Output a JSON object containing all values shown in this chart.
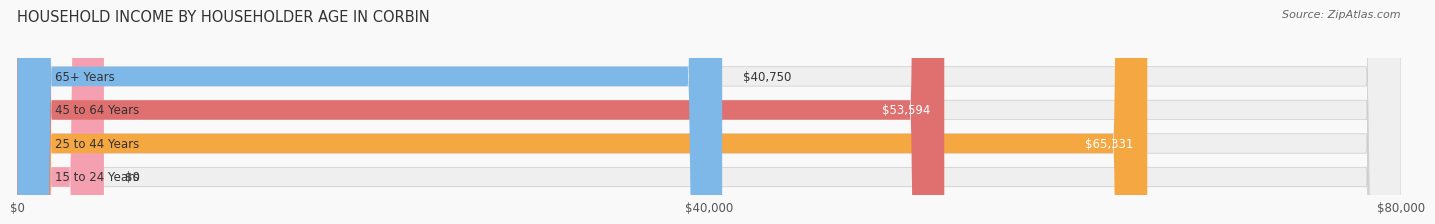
{
  "title": "HOUSEHOLD INCOME BY HOUSEHOLDER AGE IN CORBIN",
  "source": "Source: ZipAtlas.com",
  "categories": [
    "15 to 24 Years",
    "25 to 44 Years",
    "45 to 64 Years",
    "65+ Years"
  ],
  "values": [
    0,
    65331,
    53594,
    40750
  ],
  "bar_colors": [
    "#f4a0b0",
    "#f5a742",
    "#e07070",
    "#7eb8e8"
  ],
  "bar_bg_color": "#efefef",
  "xlim": [
    0,
    80000
  ],
  "xticks": [
    0,
    40000,
    80000
  ],
  "xtick_labels": [
    "$0",
    "$40,000",
    "$80,000"
  ],
  "title_fontsize": 10.5,
  "source_fontsize": 8,
  "label_fontsize": 8.5,
  "tick_fontsize": 8.5,
  "background_color": "#f9f9f9",
  "bar_height": 0.58,
  "value_labels": [
    "$0",
    "$65,331",
    "$53,594",
    "$40,750"
  ],
  "value_label_inside": [
    false,
    true,
    true,
    false
  ]
}
